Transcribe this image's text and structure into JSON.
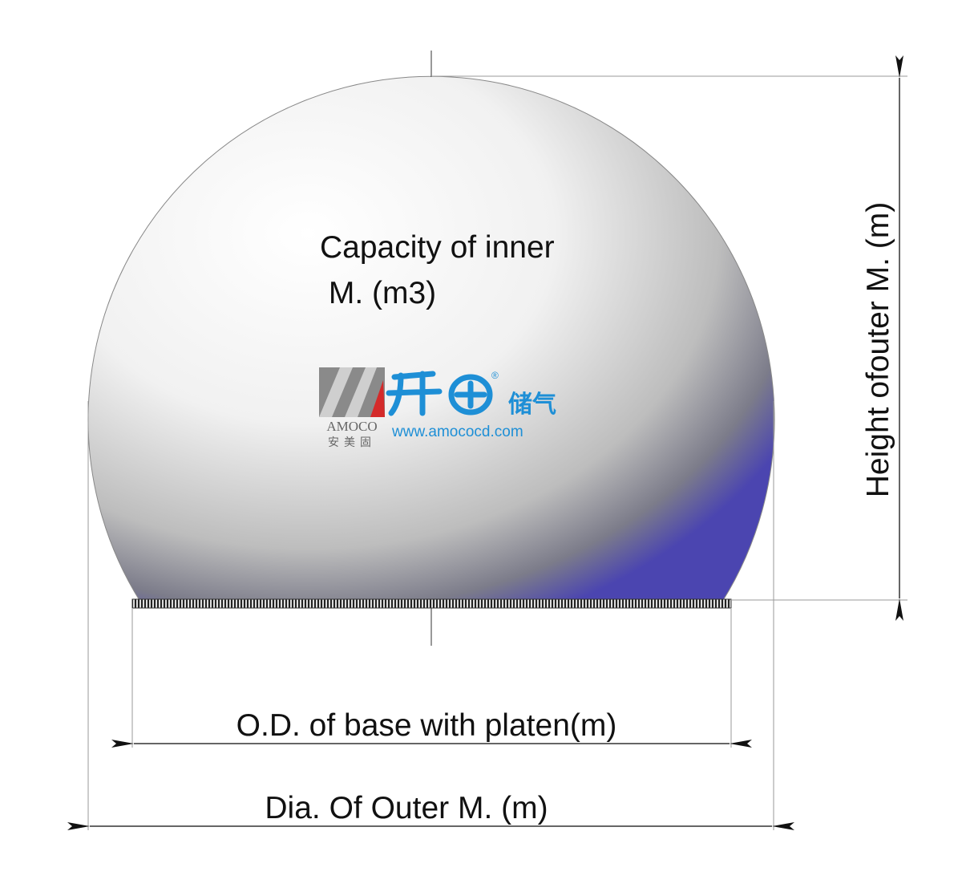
{
  "labels": {
    "capacity": [
      "Capacity of inner",
      " M. (m3)"
    ],
    "height": "Height ofouter M. (m)",
    "base_diameter": "O.D. of base with platen(m)",
    "outer_diameter": "Dia. Of Outer M. (m)"
  },
  "logo": {
    "brand": "AMOCO",
    "brand_cn": "安美固",
    "product": "储气",
    "url": "www.amococd.com",
    "registered": "®"
  }
}
